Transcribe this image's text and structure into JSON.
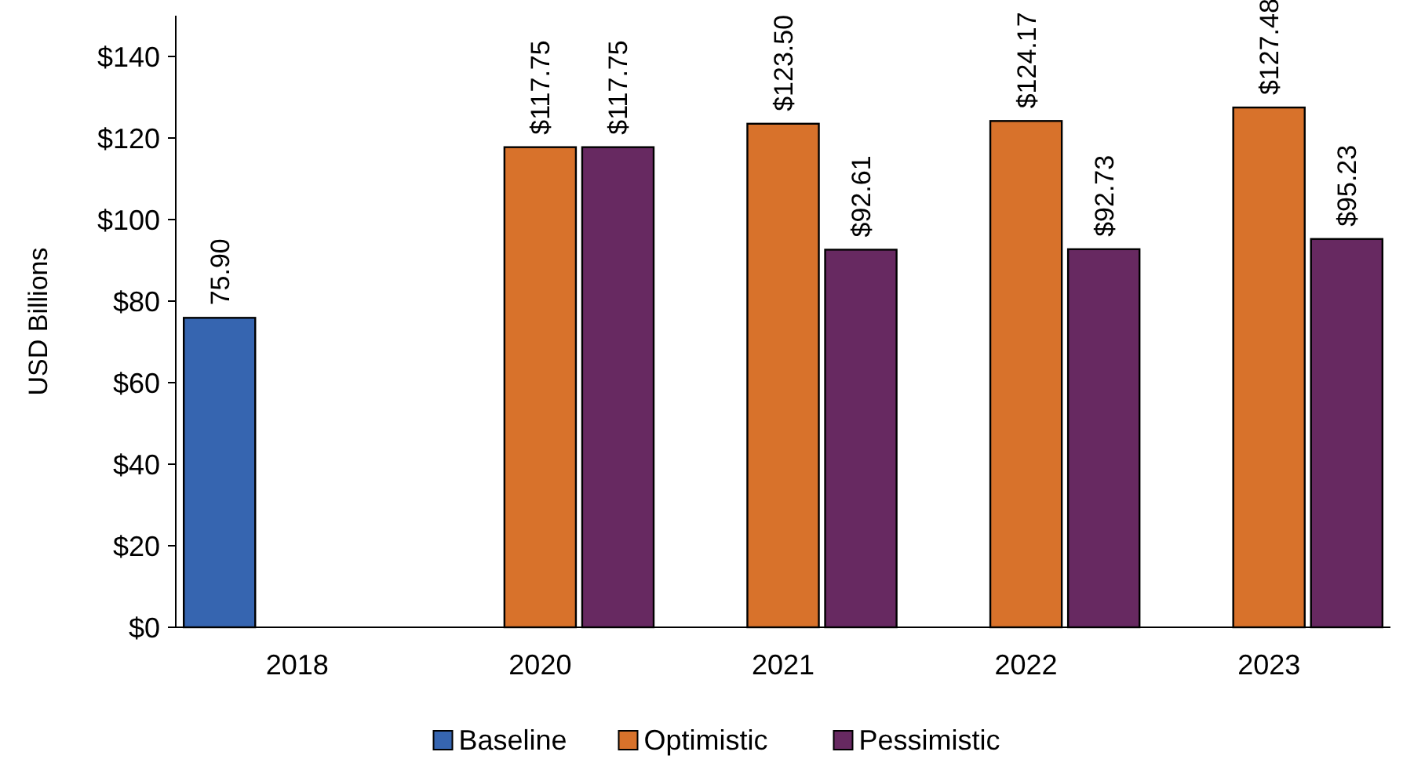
{
  "chart_data": {
    "type": "bar",
    "ylabel": "USD Billions",
    "categories": [
      "2018",
      "2020",
      "2021",
      "2022",
      "2023"
    ],
    "series": [
      {
        "name": "Baseline",
        "color": "#3665b0",
        "values": [
          75.9,
          null,
          null,
          null,
          null
        ],
        "value_labels": [
          "75.90",
          null,
          null,
          null,
          null
        ]
      },
      {
        "name": "Optimistic",
        "color": "#d8722b",
        "values": [
          null,
          117.75,
          123.5,
          124.17,
          127.48
        ],
        "value_labels": [
          null,
          "$117.75",
          "$123.50",
          "$124.17",
          "$127.48"
        ]
      },
      {
        "name": "Pessimistic",
        "color": "#672961",
        "values": [
          null,
          117.75,
          92.61,
          92.73,
          95.23
        ],
        "value_labels": [
          null,
          "$117.75",
          "$92.61",
          "$92.73",
          "$95.23"
        ]
      }
    ],
    "ylim": [
      0,
      150
    ],
    "yticks": [
      {
        "value": 0,
        "label": "$0"
      },
      {
        "value": 20,
        "label": "$20"
      },
      {
        "value": 40,
        "label": "$40"
      },
      {
        "value": 60,
        "label": "$60"
      },
      {
        "value": 80,
        "label": "$80"
      },
      {
        "value": 100,
        "label": "$100"
      },
      {
        "value": 120,
        "label": "$120"
      },
      {
        "value": 140,
        "label": "$140"
      }
    ],
    "grid": false,
    "legend": "bottom"
  }
}
